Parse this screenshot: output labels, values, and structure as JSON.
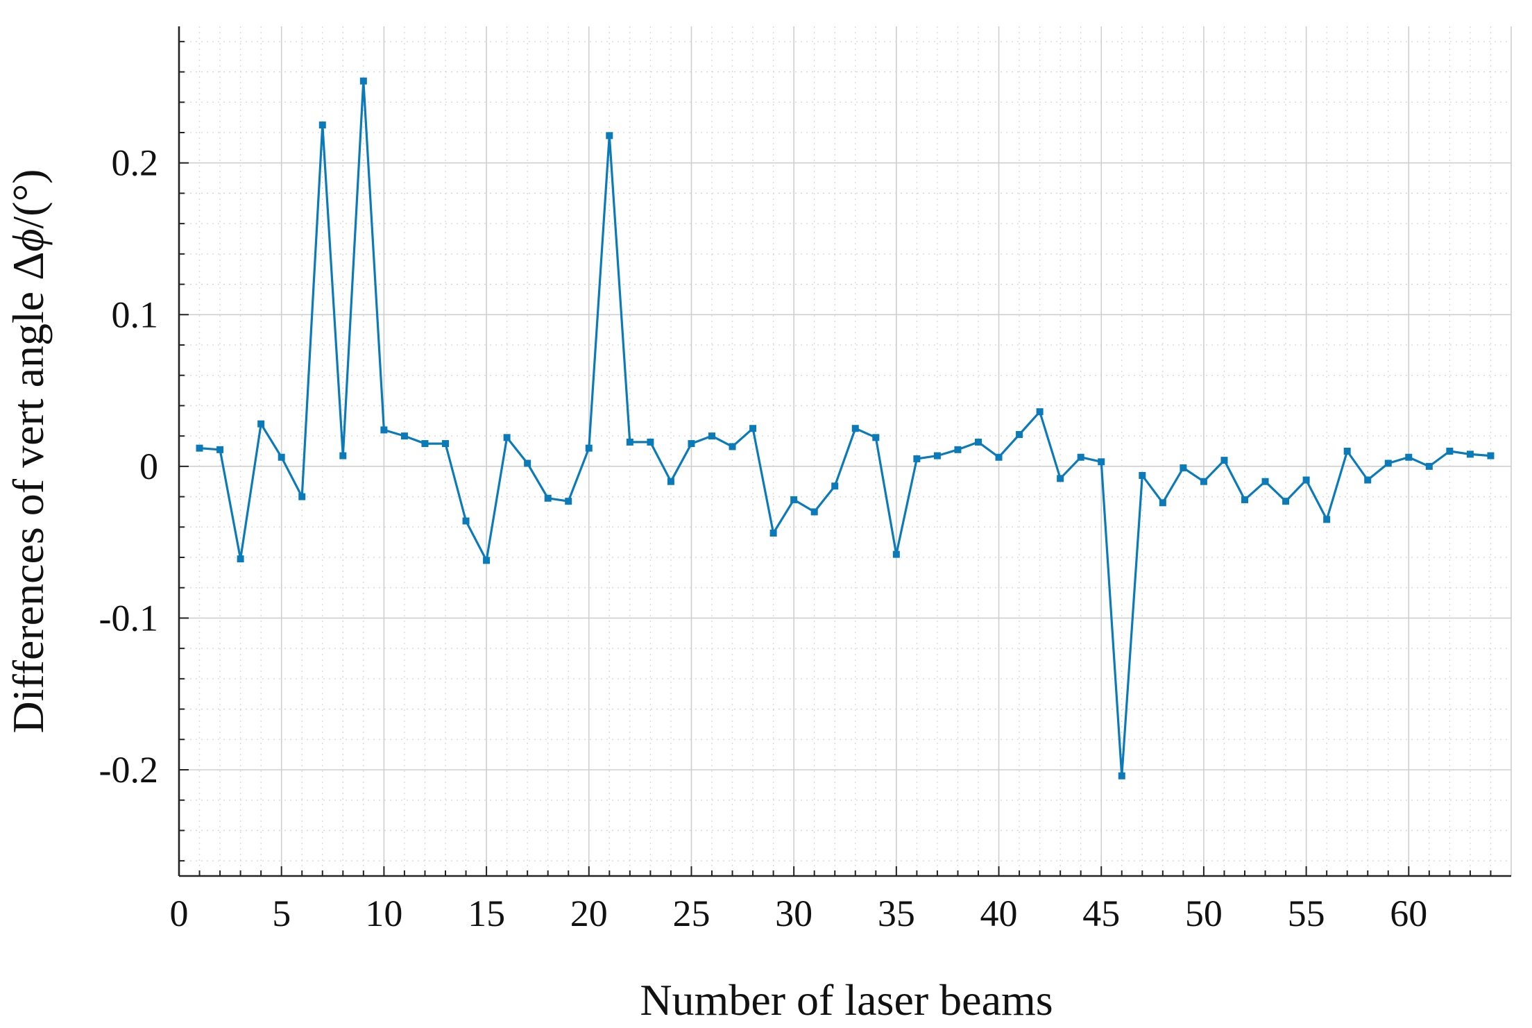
{
  "chart_data": {
    "type": "line",
    "xlabel": "Number of laser beams",
    "ylabel_prefix": "Differences of vert angle Δ",
    "ylabel_symbol": "ϕ",
    "ylabel_suffix": "/(°)",
    "xlim": [
      0,
      65
    ],
    "ylim": [
      -0.27,
      0.29
    ],
    "x_ticks": [
      0,
      5,
      10,
      15,
      20,
      25,
      30,
      35,
      40,
      45,
      50,
      55,
      60
    ],
    "x_tick_labels": [
      "0",
      "5",
      "10",
      "15",
      "20",
      "25",
      "30",
      "35",
      "40",
      "45",
      "50",
      "55",
      "60"
    ],
    "y_ticks": [
      -0.2,
      -0.1,
      0,
      0.1,
      0.2
    ],
    "y_tick_labels": [
      "-0.2",
      "-0.1",
      "0",
      "0.1",
      "0.2"
    ],
    "grid": true,
    "minor_grid": true,
    "color": "#0a7ab8",
    "marker": "square",
    "x": [
      1,
      2,
      3,
      4,
      5,
      6,
      7,
      8,
      9,
      10,
      11,
      12,
      13,
      14,
      15,
      16,
      17,
      18,
      19,
      20,
      21,
      22,
      23,
      24,
      25,
      26,
      27,
      28,
      29,
      30,
      31,
      32,
      33,
      34,
      35,
      36,
      37,
      38,
      39,
      40,
      41,
      42,
      43,
      44,
      45,
      46,
      47,
      48,
      49,
      50,
      51,
      52,
      53,
      54,
      55,
      56,
      57,
      58,
      59,
      60,
      61,
      62,
      63,
      64
    ],
    "values": [
      0.012,
      0.011,
      -0.061,
      0.028,
      0.006,
      -0.02,
      0.225,
      0.007,
      0.254,
      0.024,
      0.02,
      0.015,
      0.015,
      -0.036,
      -0.062,
      0.019,
      0.002,
      -0.021,
      -0.023,
      0.012,
      0.218,
      0.016,
      0.016,
      -0.01,
      0.015,
      0.02,
      0.013,
      0.025,
      -0.044,
      -0.022,
      -0.03,
      -0.013,
      0.025,
      0.019,
      -0.058,
      0.005,
      0.007,
      0.011,
      0.016,
      0.006,
      0.021,
      0.036,
      -0.008,
      0.006,
      0.003,
      -0.204,
      -0.006,
      -0.024,
      -0.001,
      -0.01,
      0.004,
      -0.022,
      -0.01,
      -0.023,
      -0.009,
      -0.035,
      0.01,
      -0.009,
      0.002,
      0.006,
      0.0,
      0.01,
      0.008,
      0.007
    ]
  }
}
